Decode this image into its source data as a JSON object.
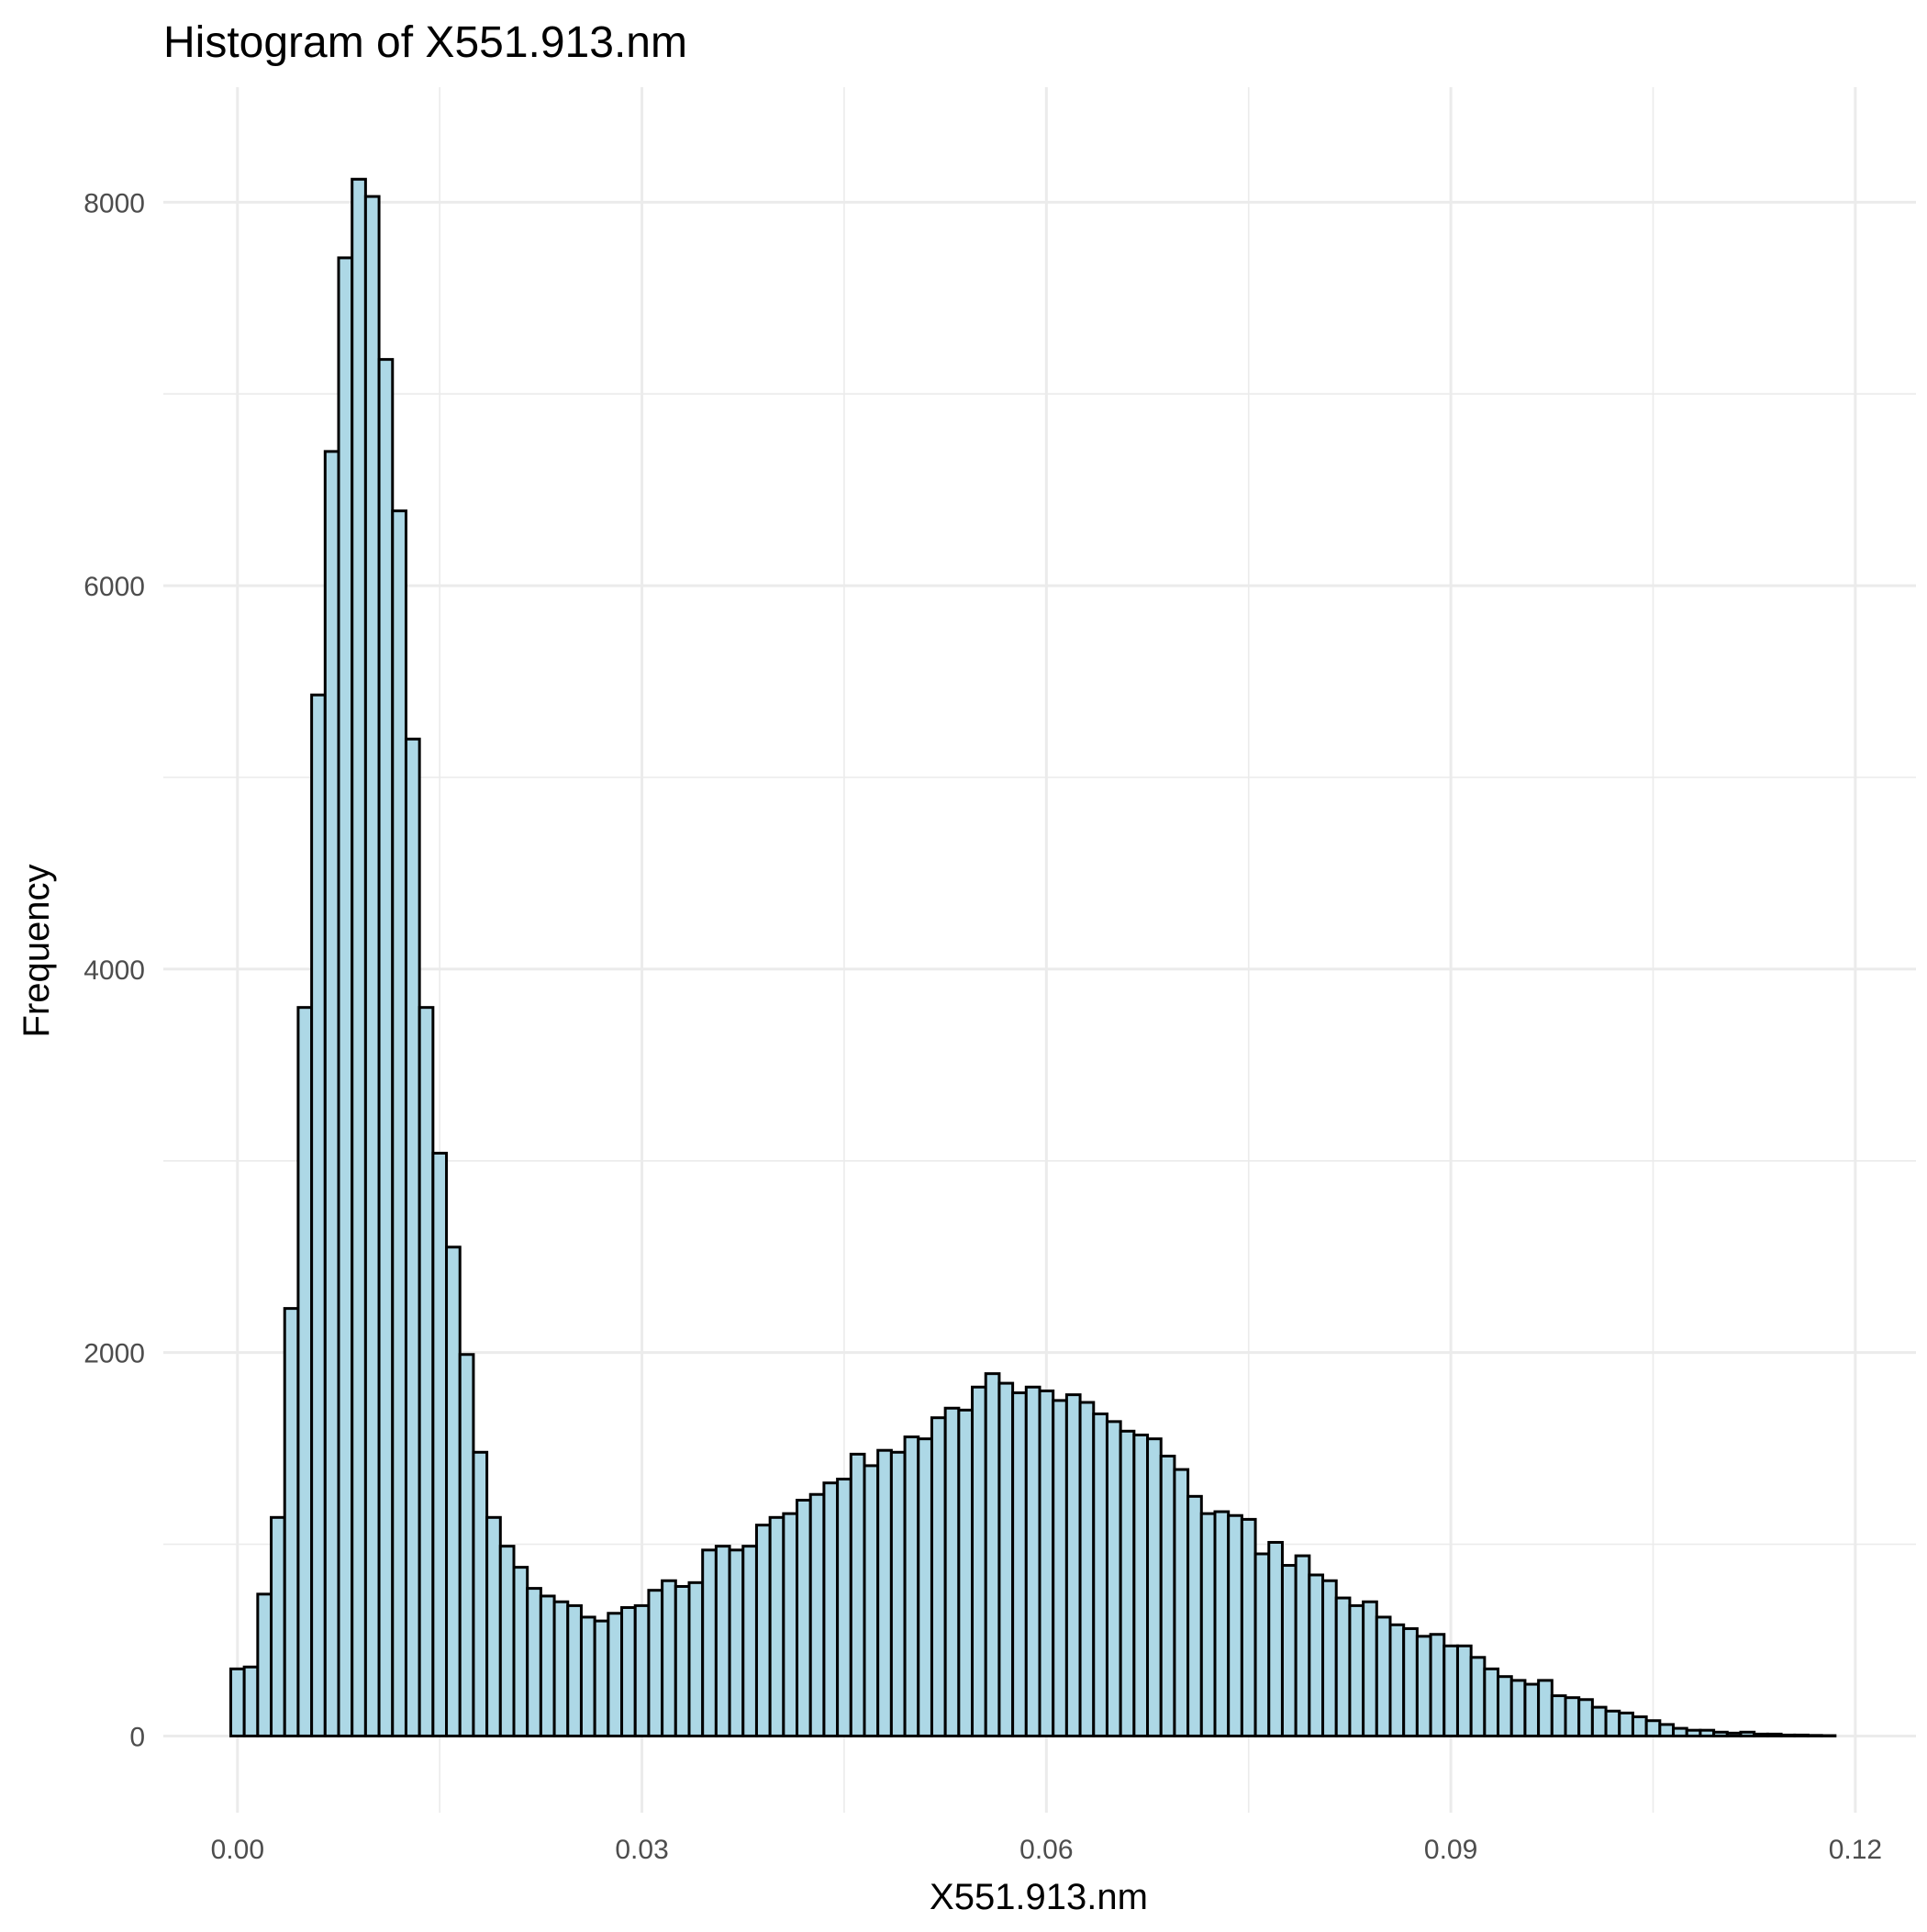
{
  "chart_data": {
    "type": "bar",
    "title": "Histogram of X551.913.nm",
    "xlabel": "X551.913.nm",
    "ylabel": "Frequency",
    "xlim": [
      -0.0055,
      0.1245
    ],
    "ylim": [
      -400,
      8600
    ],
    "x_ticks": [
      0.0,
      0.03,
      0.06,
      0.09,
      0.12
    ],
    "x_tick_labels": [
      "0.00",
      "0.03",
      "0.06",
      "0.09",
      "0.12"
    ],
    "y_ticks": [
      0,
      2000,
      4000,
      6000,
      8000
    ],
    "y_tick_labels": [
      "0",
      "2000",
      "4000",
      "6000",
      "8000"
    ],
    "bin_start": -0.0005,
    "bin_width": 0.001,
    "values": [
      350,
      360,
      740,
      1140,
      2230,
      3800,
      5430,
      6700,
      7710,
      8120,
      8030,
      7180,
      6390,
      5200,
      3800,
      3040,
      2550,
      1990,
      1480,
      1140,
      990,
      880,
      770,
      730,
      700,
      680,
      620,
      600,
      640,
      670,
      680,
      760,
      810,
      780,
      800,
      970,
      990,
      970,
      990,
      1100,
      1140,
      1160,
      1230,
      1260,
      1320,
      1340,
      1470,
      1410,
      1490,
      1480,
      1560,
      1550,
      1660,
      1710,
      1700,
      1820,
      1890,
      1840,
      1790,
      1820,
      1800,
      1750,
      1780,
      1740,
      1680,
      1640,
      1590,
      1570,
      1550,
      1460,
      1390,
      1250,
      1160,
      1170,
      1150,
      1130,
      950,
      1010,
      890,
      940,
      840,
      810,
      720,
      680,
      700,
      620,
      580,
      560,
      520,
      530,
      470,
      470,
      410,
      350,
      310,
      290,
      270,
      290,
      210,
      200,
      190,
      150,
      130,
      120,
      100,
      80,
      60,
      40,
      30,
      30,
      20,
      15,
      20,
      10,
      10,
      5,
      5,
      3,
      2
    ]
  }
}
